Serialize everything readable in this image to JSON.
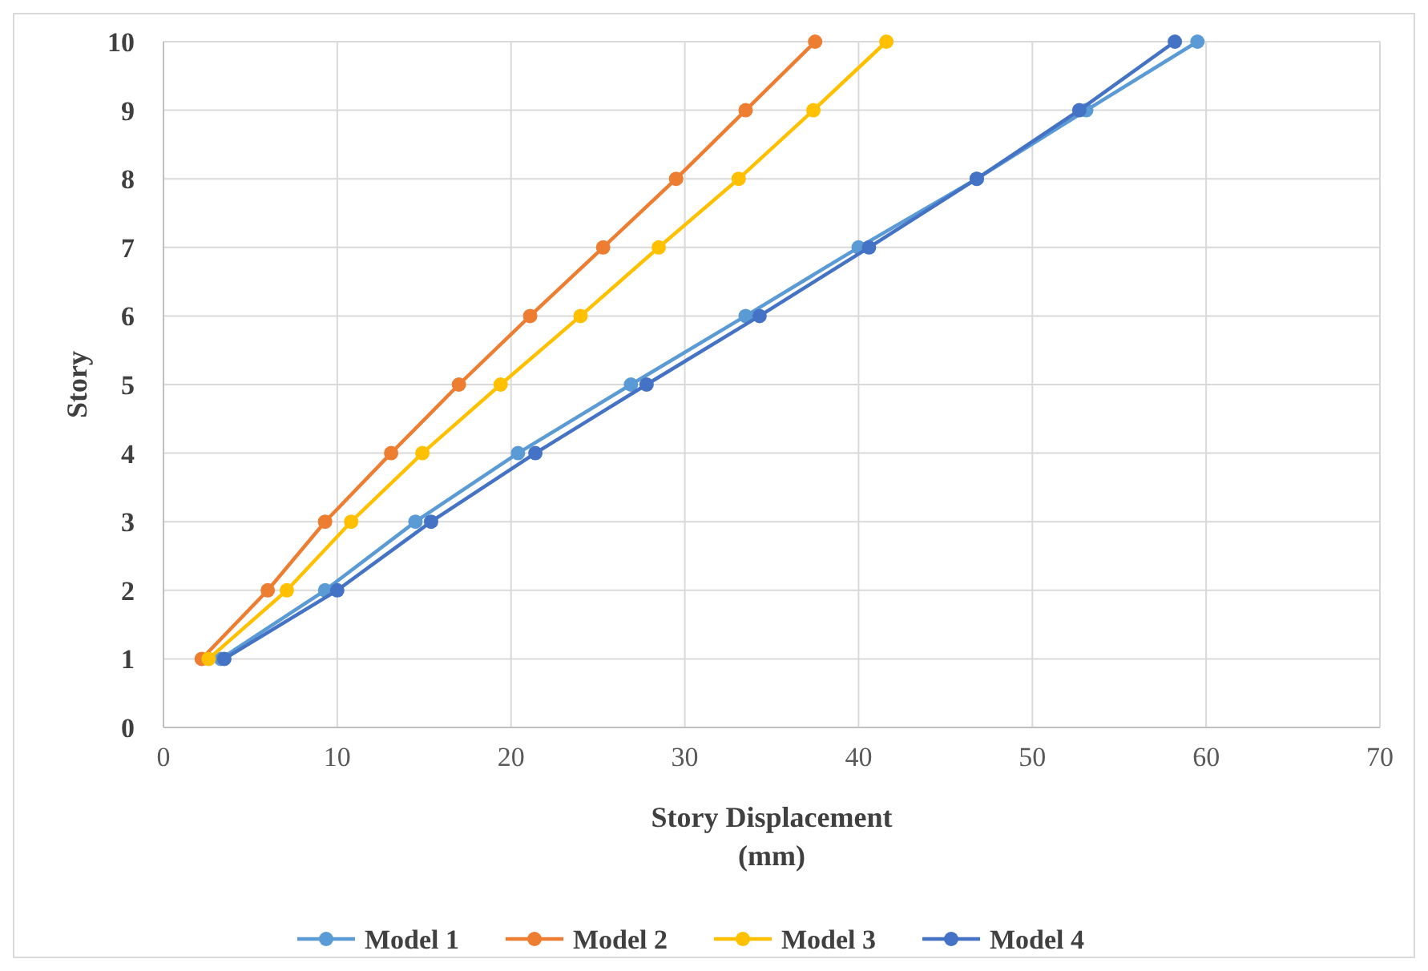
{
  "chart_data": {
    "type": "line",
    "xlabel": "Story Displacement\n(mm)",
    "ylabel": "Story",
    "xlim": [
      0,
      70
    ],
    "xticks": [
      0,
      10,
      20,
      30,
      40,
      50,
      60,
      70
    ],
    "ylim": [
      0,
      10
    ],
    "yticks": [
      0,
      1,
      2,
      3,
      4,
      5,
      6,
      7,
      8,
      9,
      10
    ],
    "grid": true,
    "legend": "bottom",
    "marker": "circle",
    "line_style": "solid",
    "series": [
      {
        "name": "Model 1",
        "color": "#5b9bd5",
        "x": [
          3.3,
          9.3,
          14.5,
          20.4,
          26.9,
          33.5,
          40.0,
          46.8,
          53.1,
          59.5
        ],
        "values": [
          1,
          2,
          3,
          4,
          5,
          6,
          7,
          8,
          9,
          10
        ]
      },
      {
        "name": "Model 2",
        "color": "#ed7d31",
        "x": [
          2.2,
          6.0,
          9.3,
          13.1,
          17.0,
          21.1,
          25.3,
          29.5,
          33.5,
          37.5
        ],
        "values": [
          1,
          2,
          3,
          4,
          5,
          6,
          7,
          8,
          9,
          10
        ]
      },
      {
        "name": "Model 3",
        "color": "#ffc000",
        "x": [
          2.6,
          7.1,
          10.8,
          14.9,
          19.4,
          24.0,
          28.5,
          33.1,
          37.4,
          41.6
        ],
        "values": [
          1,
          2,
          3,
          4,
          5,
          6,
          7,
          8,
          9,
          10
        ]
      },
      {
        "name": "Model 4",
        "color": "#4472c4",
        "x": [
          3.5,
          10.0,
          15.4,
          21.4,
          27.8,
          34.3,
          40.6,
          46.8,
          52.7,
          58.2
        ],
        "values": [
          1,
          2,
          3,
          4,
          5,
          6,
          7,
          8,
          9,
          10
        ]
      }
    ]
  }
}
